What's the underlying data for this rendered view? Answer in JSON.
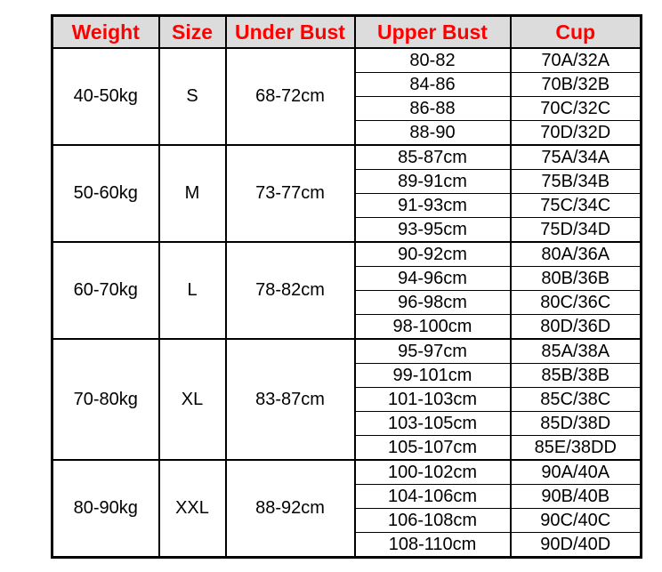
{
  "colors": {
    "background": "#ffffff",
    "header_bg": "#dcdcdc",
    "header_text": "#ff0000",
    "body_text": "#000000",
    "border": "#000000"
  },
  "chart_data": {
    "type": "table",
    "title": "",
    "columns": [
      "Weight",
      "Size",
      "Under Bust",
      "Upper Bust",
      "Cup"
    ],
    "groups": [
      {
        "weight": "40-50kg",
        "size": "S",
        "under_bust": "68-72cm",
        "rows": [
          {
            "upper_bust": "80-82",
            "cup": "70A/32A"
          },
          {
            "upper_bust": "84-86",
            "cup": "70B/32B"
          },
          {
            "upper_bust": "86-88",
            "cup": "70C/32C"
          },
          {
            "upper_bust": "88-90",
            "cup": "70D/32D"
          }
        ]
      },
      {
        "weight": "50-60kg",
        "size": "M",
        "under_bust": "73-77cm",
        "rows": [
          {
            "upper_bust": "85-87cm",
            "cup": "75A/34A"
          },
          {
            "upper_bust": "89-91cm",
            "cup": "75B/34B"
          },
          {
            "upper_bust": "91-93cm",
            "cup": "75C/34C"
          },
          {
            "upper_bust": "93-95cm",
            "cup": "75D/34D"
          }
        ]
      },
      {
        "weight": "60-70kg",
        "size": "L",
        "under_bust": "78-82cm",
        "rows": [
          {
            "upper_bust": "90-92cm",
            "cup": "80A/36A"
          },
          {
            "upper_bust": "94-96cm",
            "cup": "80B/36B"
          },
          {
            "upper_bust": "96-98cm",
            "cup": "80C/36C"
          },
          {
            "upper_bust": "98-100cm",
            "cup": "80D/36D"
          }
        ]
      },
      {
        "weight": "70-80kg",
        "size": "XL",
        "under_bust": "83-87cm",
        "rows": [
          {
            "upper_bust": "95-97cm",
            "cup": "85A/38A"
          },
          {
            "upper_bust": "99-101cm",
            "cup": "85B/38B"
          },
          {
            "upper_bust": "101-103cm",
            "cup": "85C/38C"
          },
          {
            "upper_bust": "103-105cm",
            "cup": "85D/38D"
          },
          {
            "upper_bust": "105-107cm",
            "cup": "85E/38DD"
          }
        ]
      },
      {
        "weight": "80-90kg",
        "size": "XXL",
        "under_bust": "88-92cm",
        "rows": [
          {
            "upper_bust": "100-102cm",
            "cup": "90A/40A"
          },
          {
            "upper_bust": "104-106cm",
            "cup": "90B/40B"
          },
          {
            "upper_bust": "106-108cm",
            "cup": "90C/40C"
          },
          {
            "upper_bust": "108-110cm",
            "cup": "90D/40D"
          }
        ]
      }
    ]
  }
}
